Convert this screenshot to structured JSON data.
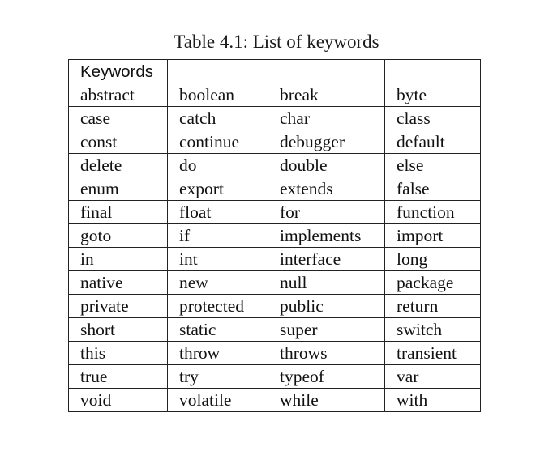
{
  "caption": "Table 4.1: List of keywords",
  "table": {
    "header": [
      "Keywords",
      "",
      "",
      ""
    ],
    "rows": [
      [
        "abstract",
        "boolean",
        "break",
        "byte"
      ],
      [
        "case",
        "catch",
        "char",
        "class"
      ],
      [
        "const",
        "continue",
        "debugger",
        "default"
      ],
      [
        "delete",
        "do",
        "double",
        "else"
      ],
      [
        "enum",
        "export",
        "extends",
        "false"
      ],
      [
        "final",
        "float",
        "for",
        "function"
      ],
      [
        "goto",
        "if",
        "implements",
        "import"
      ],
      [
        "in",
        "int",
        "interface",
        "long"
      ],
      [
        "native",
        "new",
        "null",
        "package"
      ],
      [
        "private",
        "protected",
        "public",
        "return"
      ],
      [
        "short",
        "static",
        "super",
        "switch"
      ],
      [
        "this",
        "throw",
        "throws",
        "transient"
      ],
      [
        "true",
        "try",
        "typeof",
        "var"
      ],
      [
        "void",
        "volatile",
        "while",
        "with"
      ]
    ]
  }
}
